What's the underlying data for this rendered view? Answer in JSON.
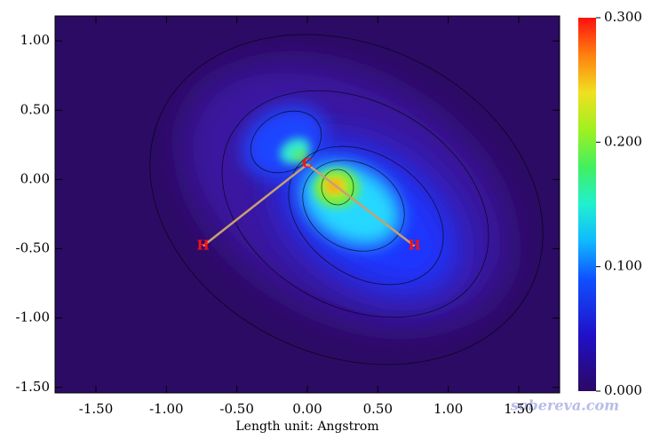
{
  "chart_data": {
    "type": "heatmap",
    "xlabel": "Length unit: Angstrom",
    "xlim": [
      -1.79,
      1.79
    ],
    "ylim": [
      -1.54,
      1.18
    ],
    "xticks": [
      {
        "value": -1.5,
        "label": "-1.50"
      },
      {
        "value": -1.0,
        "label": "-1.00"
      },
      {
        "value": -0.5,
        "label": "-0.50"
      },
      {
        "value": 0,
        "label": "0.00"
      },
      {
        "value": 0.5,
        "label": "0.50"
      },
      {
        "value": 1.0,
        "label": "1.00"
      },
      {
        "value": 1.5,
        "label": "1.50"
      }
    ],
    "yticks": [
      {
        "value": 1.0,
        "label": "1.00"
      },
      {
        "value": 0.5,
        "label": "0.50"
      },
      {
        "value": 0,
        "label": "0.00"
      },
      {
        "value": -0.5,
        "label": "-0.50"
      },
      {
        "value": -1.0,
        "label": "-1.00"
      },
      {
        "value": -1.5,
        "label": "-1.50"
      }
    ],
    "colorbar": {
      "lim": [
        0,
        0.3
      ],
      "ticks": [
        {
          "value": 0,
          "label": "0.000"
        },
        {
          "value": 0.1,
          "label": "0.100"
        },
        {
          "value": 0.2,
          "label": "0.200"
        },
        {
          "value": 0.3,
          "label": "0.300"
        }
      ]
    },
    "atoms": [
      {
        "label": "C",
        "x": 0.0,
        "y": 0.11
      },
      {
        "label": "H",
        "x": -0.74,
        "y": -0.48
      },
      {
        "label": "H",
        "x": 0.76,
        "y": -0.48
      }
    ],
    "watermark": "sobereva.com"
  }
}
